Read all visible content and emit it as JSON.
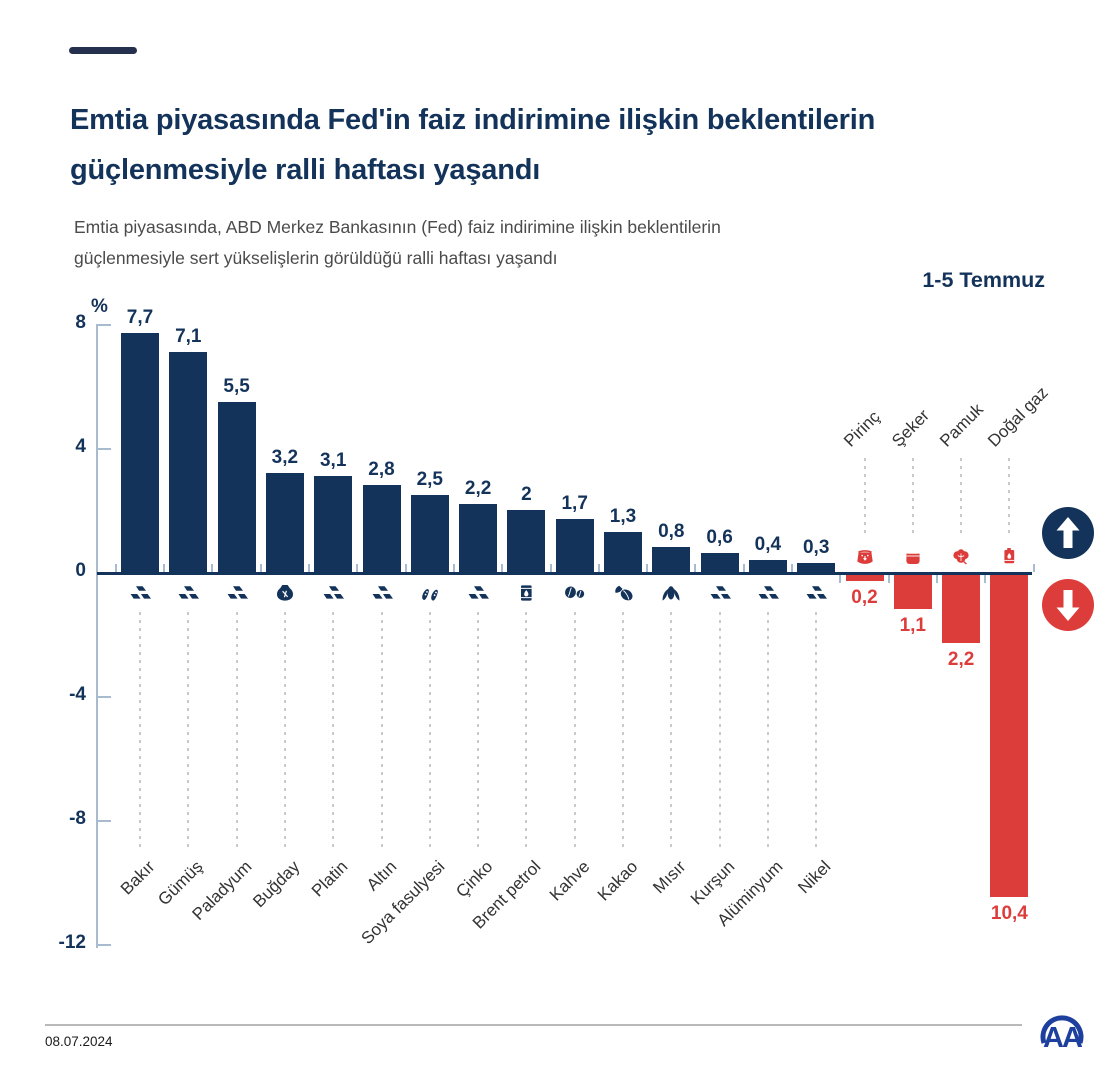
{
  "header": {
    "title": "Emtia piyasasında Fed'in faiz indirimine ilişkin beklentilerin\ngüçlenmesiyle ralli haftası yaşandı",
    "subtitle": "Emtia piyasasında, ABD Merkez Bankasının (Fed) faiz indirimine ilişkin beklentilerin\ngüçlenmesiyle sert yükselişlerin görüldüğü ralli haftası yaşandı",
    "period_label": "1-5 Temmuz"
  },
  "chart_data": {
    "type": "bar",
    "unit_label": "%",
    "ylim": [
      -12,
      8
    ],
    "ytick_values": [
      8,
      4,
      0,
      -4,
      -8,
      -12
    ],
    "ytick_labels": [
      "8",
      "4",
      "0",
      "-4",
      "-8",
      "-12"
    ],
    "grid": false,
    "bar_colors": {
      "positive": "#14335a",
      "negative": "#dc3d3b"
    },
    "badges": [
      {
        "icon": "up-arrow-icon",
        "color": "#14335a"
      },
      {
        "icon": "down-arrow-icon",
        "color": "#dc3d3b"
      }
    ],
    "series": [
      {
        "name": "Bakır",
        "value": 7.7,
        "label": "7,7",
        "icon": "metal-ingots-icon"
      },
      {
        "name": "Gümüş",
        "value": 7.1,
        "label": "7,1",
        "icon": "metal-ingots-icon"
      },
      {
        "name": "Paladyum",
        "value": 5.5,
        "label": "5,5",
        "icon": "metal-ingots-icon"
      },
      {
        "name": "Buğday",
        "value": 3.2,
        "label": "3,2",
        "icon": "wheat-sack-icon"
      },
      {
        "name": "Platin",
        "value": 3.1,
        "label": "3,1",
        "icon": "metal-ingots-icon"
      },
      {
        "name": "Altın",
        "value": 2.8,
        "label": "2,8",
        "icon": "metal-ingots-icon"
      },
      {
        "name": "Soya fasulyesi",
        "value": 2.5,
        "label": "2,5",
        "icon": "soybean-icon"
      },
      {
        "name": "Çinko",
        "value": 2.2,
        "label": "2,2",
        "icon": "metal-ingots-icon"
      },
      {
        "name": "Brent petrol",
        "value": 2,
        "label": "2",
        "icon": "oil-barrel-icon"
      },
      {
        "name": "Kahve",
        "value": 1.7,
        "label": "1,7",
        "icon": "coffee-beans-icon"
      },
      {
        "name": "Kakao",
        "value": 1.3,
        "label": "1,3",
        "icon": "cocoa-pod-icon"
      },
      {
        "name": "Mısır",
        "value": 0.8,
        "label": "0,8",
        "icon": "corn-icon"
      },
      {
        "name": "Kurşun",
        "value": 0.6,
        "label": "0,6",
        "icon": "metal-ingots-icon"
      },
      {
        "name": "Alüminyum",
        "value": 0.4,
        "label": "0,4",
        "icon": "metal-ingots-icon"
      },
      {
        "name": "Nikel",
        "value": 0.3,
        "label": "0,3",
        "icon": "metal-ingots-icon"
      },
      {
        "name": "Pirinç",
        "value": -0.2,
        "label": "0,2",
        "icon": "rice-sack-icon"
      },
      {
        "name": "Şeker",
        "value": -1.1,
        "label": "1,1",
        "icon": "sugar-pot-icon"
      },
      {
        "name": "Pamuk",
        "value": -2.2,
        "label": "2,2",
        "icon": "cotton-icon"
      },
      {
        "name": "Doğal gaz",
        "value": -10.4,
        "label": "10,4",
        "icon": "gas-drum-icon"
      }
    ]
  },
  "footer": {
    "date": "08.07.2024",
    "agency_logo": "AA"
  }
}
